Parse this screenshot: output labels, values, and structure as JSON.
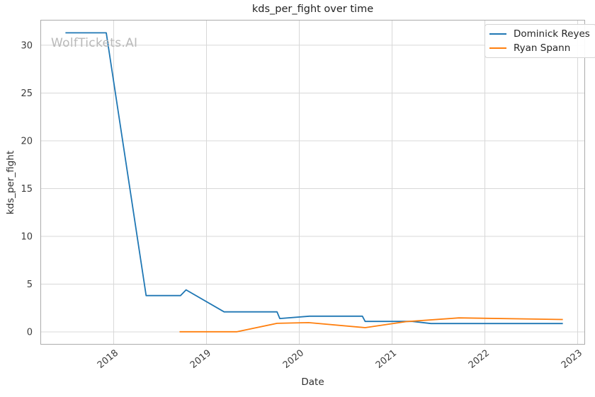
{
  "chart_data": {
    "type": "line",
    "title": "kds_per_fight over time",
    "xlabel": "Date",
    "ylabel": "kds_per_fight",
    "watermark": "WolfTickets.AI",
    "grid": true,
    "legend_position": "upper right",
    "xlim": [
      2017.21,
      2023.08
    ],
    "ylim": [
      -1.33,
      32.66
    ],
    "x_ticks": [
      2018,
      2019,
      2020,
      2021,
      2022,
      2023
    ],
    "y_ticks": [
      0,
      5,
      10,
      15,
      20,
      25,
      30
    ],
    "series": [
      {
        "name": "Dominick Reyes",
        "color": "#1f77b4",
        "points": [
          [
            2017.48,
            31.3
          ],
          [
            2017.92,
            31.3
          ],
          [
            2018.35,
            3.8
          ],
          [
            2018.72,
            3.8
          ],
          [
            2018.78,
            4.4
          ],
          [
            2019.19,
            2.1
          ],
          [
            2019.76,
            2.1
          ],
          [
            2019.79,
            1.4
          ],
          [
            2020.11,
            1.65
          ],
          [
            2020.68,
            1.65
          ],
          [
            2020.71,
            1.1
          ],
          [
            2021.22,
            1.1
          ],
          [
            2021.42,
            0.88
          ],
          [
            2022.84,
            0.88
          ]
        ]
      },
      {
        "name": "Ryan Spann",
        "color": "#ff7f0e",
        "points": [
          [
            2018.71,
            0.02
          ],
          [
            2019.33,
            0.02
          ],
          [
            2019.76,
            0.9
          ],
          [
            2020.1,
            0.97
          ],
          [
            2020.71,
            0.45
          ],
          [
            2021.15,
            1.08
          ],
          [
            2021.72,
            1.47
          ],
          [
            2022.84,
            1.3
          ]
        ]
      }
    ]
  },
  "colors": {
    "grid": "#d8d8d8",
    "spine": "#ababab",
    "background": "#ffffff",
    "tick_text": "#3c3c3c",
    "watermark_text": "#b9b9b9"
  }
}
